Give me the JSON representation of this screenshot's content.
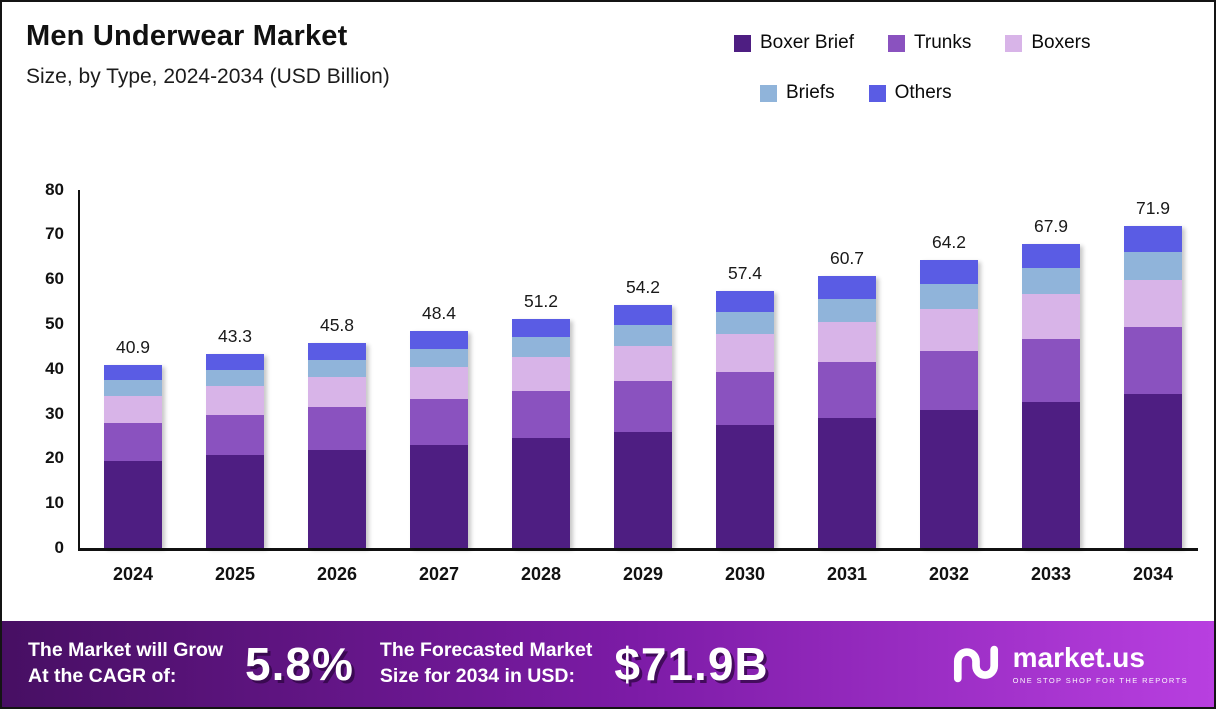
{
  "header": {
    "title": "Men Underwear Market",
    "subtitle": "Size, by Type, 2024-2034 (USD Billion)"
  },
  "legend": [
    {
      "label": "Boxer Brief",
      "color": "#4e1e82"
    },
    {
      "label": "Trunks",
      "color": "#8a52bf"
    },
    {
      "label": "Boxers",
      "color": "#d8b4e8"
    },
    {
      "label": "Briefs",
      "color": "#90b4da"
    },
    {
      "label": "Others",
      "color": "#5a5ce4"
    }
  ],
  "chart_data": {
    "type": "bar",
    "stacked": true,
    "title": "Men Underwear Market Size, by Type, 2024-2034 (USD Billion)",
    "xlabel": "",
    "ylabel": "USD Billion",
    "ylim": [
      0,
      80
    ],
    "yticks": [
      0,
      10,
      20,
      30,
      40,
      50,
      60,
      70,
      80
    ],
    "grid": false,
    "legend_position": "top-right",
    "categories": [
      "2024",
      "2025",
      "2026",
      "2027",
      "2028",
      "2029",
      "2030",
      "2031",
      "2032",
      "2033",
      "2034"
    ],
    "totals": [
      "40.9",
      "43.3",
      "45.8",
      "48.4",
      "51.2",
      "54.2",
      "57.4",
      "60.7",
      "64.2",
      "67.9",
      "71.9"
    ],
    "series": [
      {
        "name": "Boxer Brief",
        "color": "#4e1e82",
        "values": [
          19.5,
          20.7,
          21.9,
          23.1,
          24.5,
          25.9,
          27.4,
          29.0,
          30.7,
          32.5,
          34.4
        ]
      },
      {
        "name": "Trunks",
        "color": "#8a52bf",
        "values": [
          8.5,
          9.0,
          9.5,
          10.1,
          10.6,
          11.3,
          11.9,
          12.6,
          13.3,
          14.1,
          14.9
        ]
      },
      {
        "name": "Boxers",
        "color": "#d8b4e8",
        "values": [
          6.0,
          6.4,
          6.7,
          7.1,
          7.5,
          8.0,
          8.4,
          8.9,
          9.4,
          10.0,
          10.6
        ]
      },
      {
        "name": "Briefs",
        "color": "#90b4da",
        "values": [
          3.5,
          3.7,
          3.9,
          4.1,
          4.4,
          4.6,
          4.9,
          5.2,
          5.5,
          5.8,
          6.1
        ]
      },
      {
        "name": "Others",
        "color": "#5a5ce4",
        "values": [
          3.4,
          3.5,
          3.8,
          4.0,
          4.2,
          4.4,
          4.8,
          5.0,
          5.3,
          5.5,
          5.9
        ]
      }
    ]
  },
  "footer": {
    "gradient": [
      "#470f63",
      "#7c1ba6",
      "#b83fe0"
    ],
    "cagr_line1": "The Market will Grow",
    "cagr_line2": "At the CAGR of:",
    "cagr_value": "5.8%",
    "forecast_line1": "The Forecasted Market",
    "forecast_line2": "Size for 2034 in USD:",
    "forecast_value": "$71.9B",
    "brand": "market.us",
    "tagline": "ONE STOP SHOP FOR THE REPORTS"
  }
}
